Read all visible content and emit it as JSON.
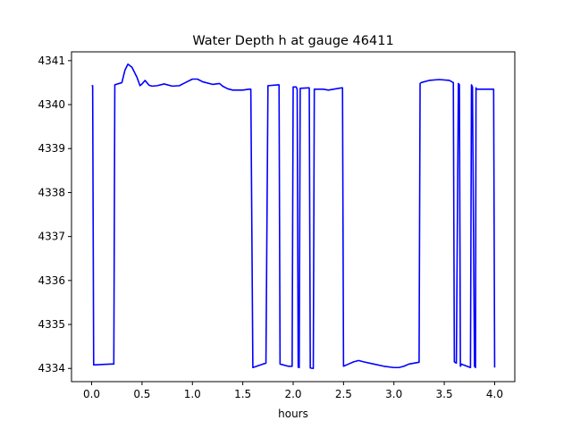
{
  "chart_data": {
    "type": "line",
    "title": "Water Depth h at gauge 46411",
    "xlabel": "hours",
    "ylabel": "",
    "xlim": [
      -0.2,
      4.2
    ],
    "ylim": [
      4333.7,
      4341.2
    ],
    "xticks": [
      0.0,
      0.5,
      1.0,
      1.5,
      2.0,
      2.5,
      3.0,
      3.5,
      4.0
    ],
    "xtick_labels": [
      "0.0",
      "0.5",
      "1.0",
      "1.5",
      "2.0",
      "2.5",
      "3.0",
      "3.5",
      "4.0"
    ],
    "yticks": [
      4334,
      4335,
      4336,
      4337,
      4338,
      4339,
      4340,
      4341
    ],
    "ytick_labels": [
      "4334",
      "4335",
      "4336",
      "4337",
      "4338",
      "4339",
      "4340",
      "4341"
    ],
    "grid": false,
    "legend": false,
    "series": [
      {
        "color": "#0000ff",
        "x": [
          0.0,
          0.01,
          0.02,
          0.1,
          0.2,
          0.22,
          0.23,
          0.3,
          0.33,
          0.36,
          0.4,
          0.45,
          0.48,
          0.5,
          0.53,
          0.57,
          0.6,
          0.65,
          0.72,
          0.8,
          0.87,
          0.93,
          1.0,
          1.05,
          1.1,
          1.2,
          1.27,
          1.3,
          1.35,
          1.4,
          1.5,
          1.56,
          1.58,
          1.6,
          1.7,
          1.73,
          1.75,
          1.85,
          1.86,
          1.87,
          1.95,
          1.99,
          2.0,
          2.03,
          2.04,
          2.05,
          2.06,
          2.07,
          2.15,
          2.16,
          2.17,
          2.2,
          2.21,
          2.22,
          2.3,
          2.35,
          2.48,
          2.49,
          2.5,
          2.55,
          2.6,
          2.65,
          2.7,
          2.8,
          2.9,
          3.0,
          3.05,
          3.1,
          3.15,
          3.25,
          3.26,
          3.27,
          3.35,
          3.45,
          3.55,
          3.59,
          3.6,
          3.62,
          3.64,
          3.65,
          3.66,
          3.67,
          3.69,
          3.76,
          3.77,
          3.78,
          3.8,
          3.81,
          3.815,
          3.82,
          3.83,
          3.98,
          3.99,
          4.0
        ],
        "y": [
          4340.43,
          4340.43,
          4334.08,
          4334.09,
          4334.1,
          4334.1,
          4340.45,
          4340.5,
          4340.78,
          4340.92,
          4340.85,
          4340.62,
          4340.43,
          4340.47,
          4340.55,
          4340.44,
          4340.42,
          4340.43,
          4340.47,
          4340.42,
          4340.43,
          4340.5,
          4340.58,
          4340.58,
          4340.52,
          4340.46,
          4340.48,
          4340.42,
          4340.36,
          4340.33,
          4340.33,
          4340.35,
          4340.35,
          4334.02,
          4334.1,
          4334.12,
          4340.43,
          4340.45,
          4340.45,
          4334.1,
          4334.05,
          4334.05,
          4340.4,
          4340.4,
          4340.35,
          4334.03,
          4334.02,
          4340.37,
          4340.38,
          4340.38,
          4334.01,
          4334.0,
          4340.35,
          4340.35,
          4340.35,
          4340.33,
          4340.38,
          4340.38,
          4334.05,
          4334.1,
          4334.15,
          4334.18,
          4334.15,
          4334.1,
          4334.05,
          4334.02,
          4334.02,
          4334.05,
          4334.1,
          4334.14,
          4340.48,
          4340.5,
          4340.55,
          4340.57,
          4340.55,
          4340.5,
          4334.15,
          4334.12,
          4340.48,
          4340.45,
          4334.05,
          4334.1,
          4334.08,
          4334.02,
          4340.45,
          4340.4,
          4334.05,
          4334.02,
          4340.38,
          4340.35,
          4340.35,
          4340.35,
          4340.35,
          4334.02
        ]
      }
    ]
  }
}
